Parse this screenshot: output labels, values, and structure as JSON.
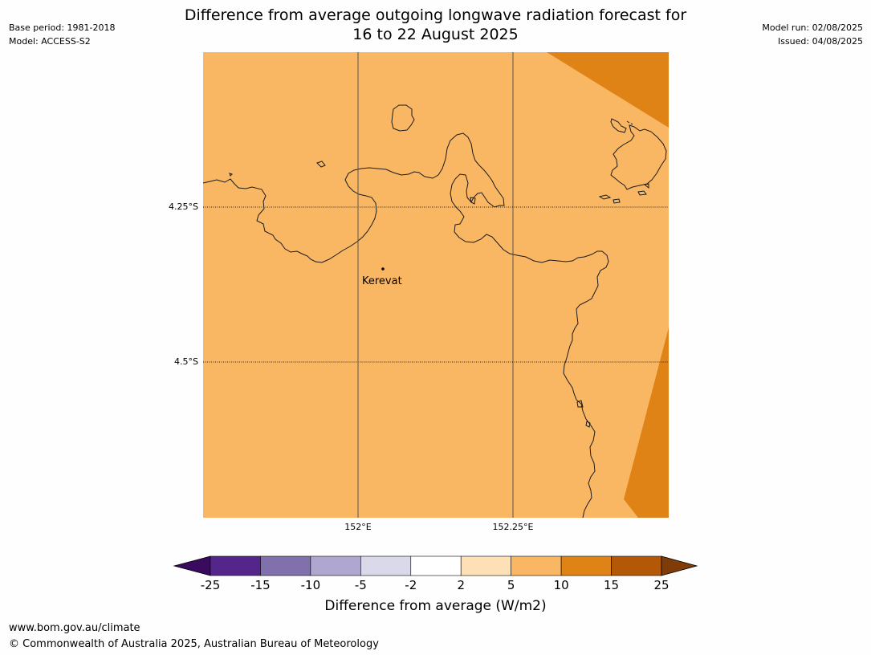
{
  "title_line1": "Difference from average outgoing longwave radiation forecast for",
  "title_line2": "16 to 22 August 2025",
  "meta_left": {
    "base_period": "Base period: 1981-2018",
    "model": "Model: ACCESS-S2"
  },
  "meta_right": {
    "model_run": "Model run: 02/08/2025",
    "issued": "Issued: 04/08/2025"
  },
  "lat_labels": [
    "4.25°S",
    "4.5°S"
  ],
  "lon_labels": [
    "152°E",
    "152.25°E"
  ],
  "place_label": "Kerevat",
  "colorbar": {
    "title": "Difference from average (W/m2)",
    "ticks": [
      "-25",
      "-15",
      "-10",
      "-5",
      "-2",
      "2",
      "5",
      "10",
      "15",
      "25"
    ],
    "colors": [
      "#3a0a5e",
      "#54258a",
      "#8071ac",
      "#b0a7d0",
      "#d9d9ea",
      "#ffffff",
      "#fde0b6",
      "#f9b764",
      "#e08317",
      "#b35806",
      "#7f3b08"
    ]
  },
  "map_colors": {
    "land_sea_base": "#f9b764",
    "high_band": "#e08317"
  },
  "footer": {
    "url": "www.bom.gov.au/climate",
    "copyright": "© Commonwealth of Australia 2025, Australian Bureau of Meteorology"
  }
}
